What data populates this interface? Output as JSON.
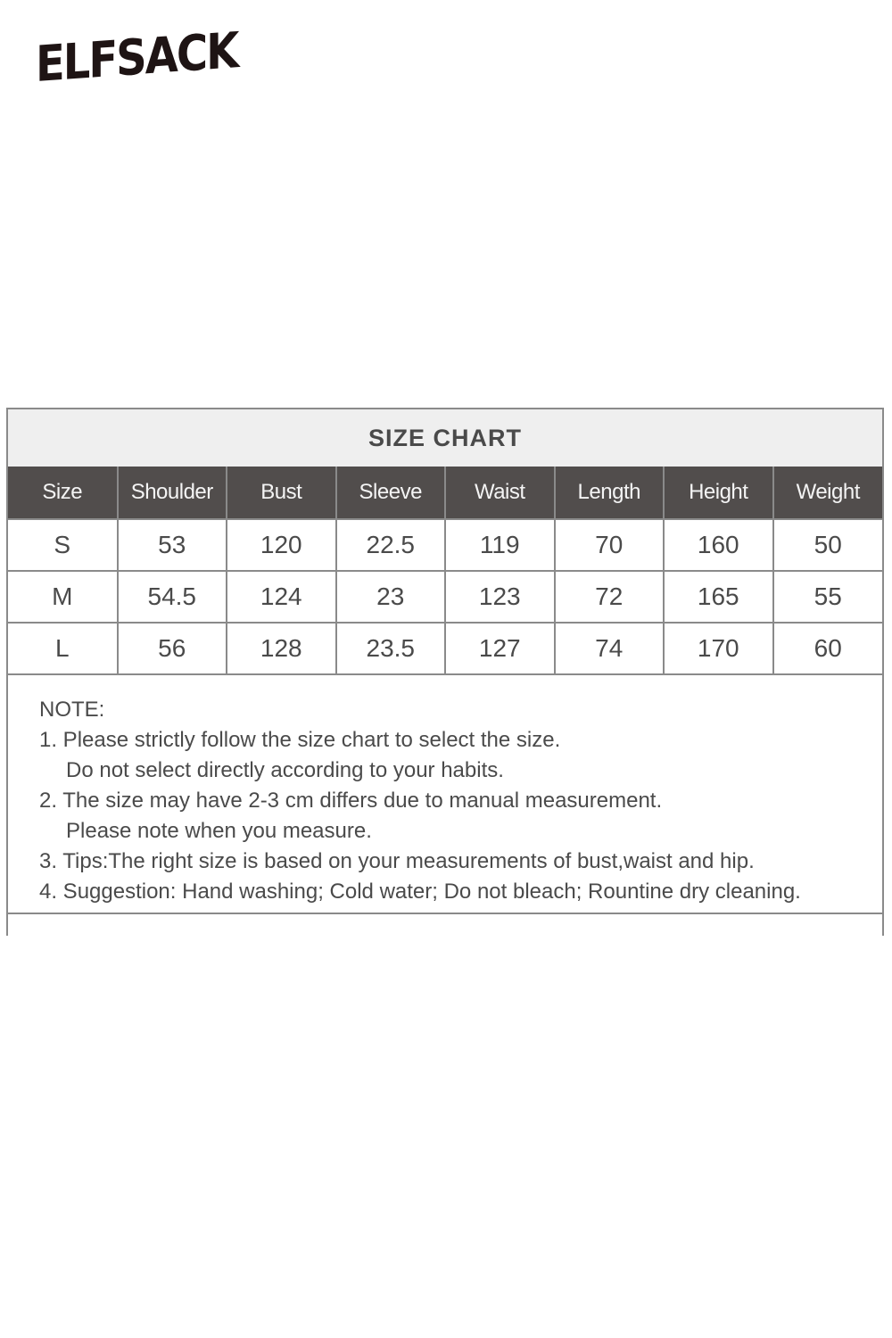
{
  "brand": {
    "logo_text": "ELFSACK"
  },
  "size_chart": {
    "title": "SIZE CHART",
    "columns": [
      "Size",
      "Shoulder",
      "Bust",
      "Sleeve",
      "Waist",
      "Length",
      "Height",
      "Weight"
    ],
    "rows": [
      [
        "S",
        "53",
        "120",
        "22.5",
        "119",
        "70",
        "160",
        "50"
      ],
      [
        "M",
        "54.5",
        "124",
        "23",
        "123",
        "72",
        "165",
        "55"
      ],
      [
        "L",
        "56",
        "128",
        "23.5",
        "127",
        "74",
        "170",
        "60"
      ]
    ]
  },
  "notes": {
    "heading": "NOTE:",
    "lines": [
      "1. Please strictly follow the size chart to select the size.",
      "Do not select directly according to your habits.",
      "2. The size may have 2-3 cm differs due to manual measurement.",
      "Please note when you measure.",
      "3. Tips:The right size is based on your measurements of bust,waist and hip.",
      "4. Suggestion: Hand washing; Cold water; Do not bleach; Rountine dry cleaning."
    ]
  },
  "colors": {
    "header_bg": "#514d4c",
    "title_bg": "#efefef",
    "border": "#8a8a8a",
    "text": "#4a4a4a"
  }
}
